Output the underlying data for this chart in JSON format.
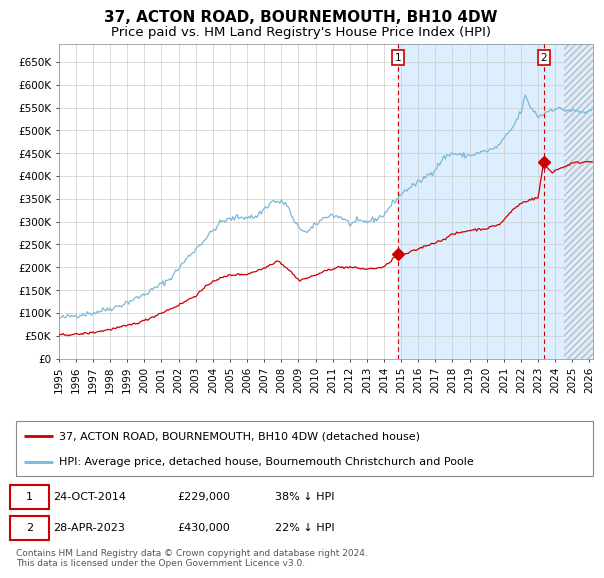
{
  "title": "37, ACTON ROAD, BOURNEMOUTH, BH10 4DW",
  "subtitle": "Price paid vs. HM Land Registry's House Price Index (HPI)",
  "yticks": [
    0,
    50000,
    100000,
    150000,
    200000,
    250000,
    300000,
    350000,
    400000,
    450000,
    500000,
    550000,
    600000,
    650000
  ],
  "xlim_start": 1995.0,
  "xlim_end": 2026.2,
  "ylim": [
    0,
    690000
  ],
  "hpi_color": "#7bb8d8",
  "price_color": "#cc0000",
  "bg_shaded_start": 2014.82,
  "shade_color": "#ddeeff",
  "dashed_line_color": "#cc0000",
  "marker1_x": 2014.82,
  "marker1_y": 229000,
  "marker2_x": 2023.33,
  "marker2_y": 430000,
  "annotation1_date": "24-OCT-2014",
  "annotation1_price": "£229,000",
  "annotation1_hpi": "38% ↓ HPI",
  "annotation2_date": "28-APR-2023",
  "annotation2_price": "£430,000",
  "annotation2_hpi": "22% ↓ HPI",
  "legend_line1": "37, ACTON ROAD, BOURNEMOUTH, BH10 4DW (detached house)",
  "legend_line2": "HPI: Average price, detached house, Bournemouth Christchurch and Poole",
  "footnote": "Contains HM Land Registry data © Crown copyright and database right 2024.\nThis data is licensed under the Open Government Licence v3.0.",
  "grid_color": "#cccccc",
  "title_fontsize": 11,
  "subtitle_fontsize": 9.5,
  "tick_fontsize": 7.5,
  "legend_fontsize": 8
}
